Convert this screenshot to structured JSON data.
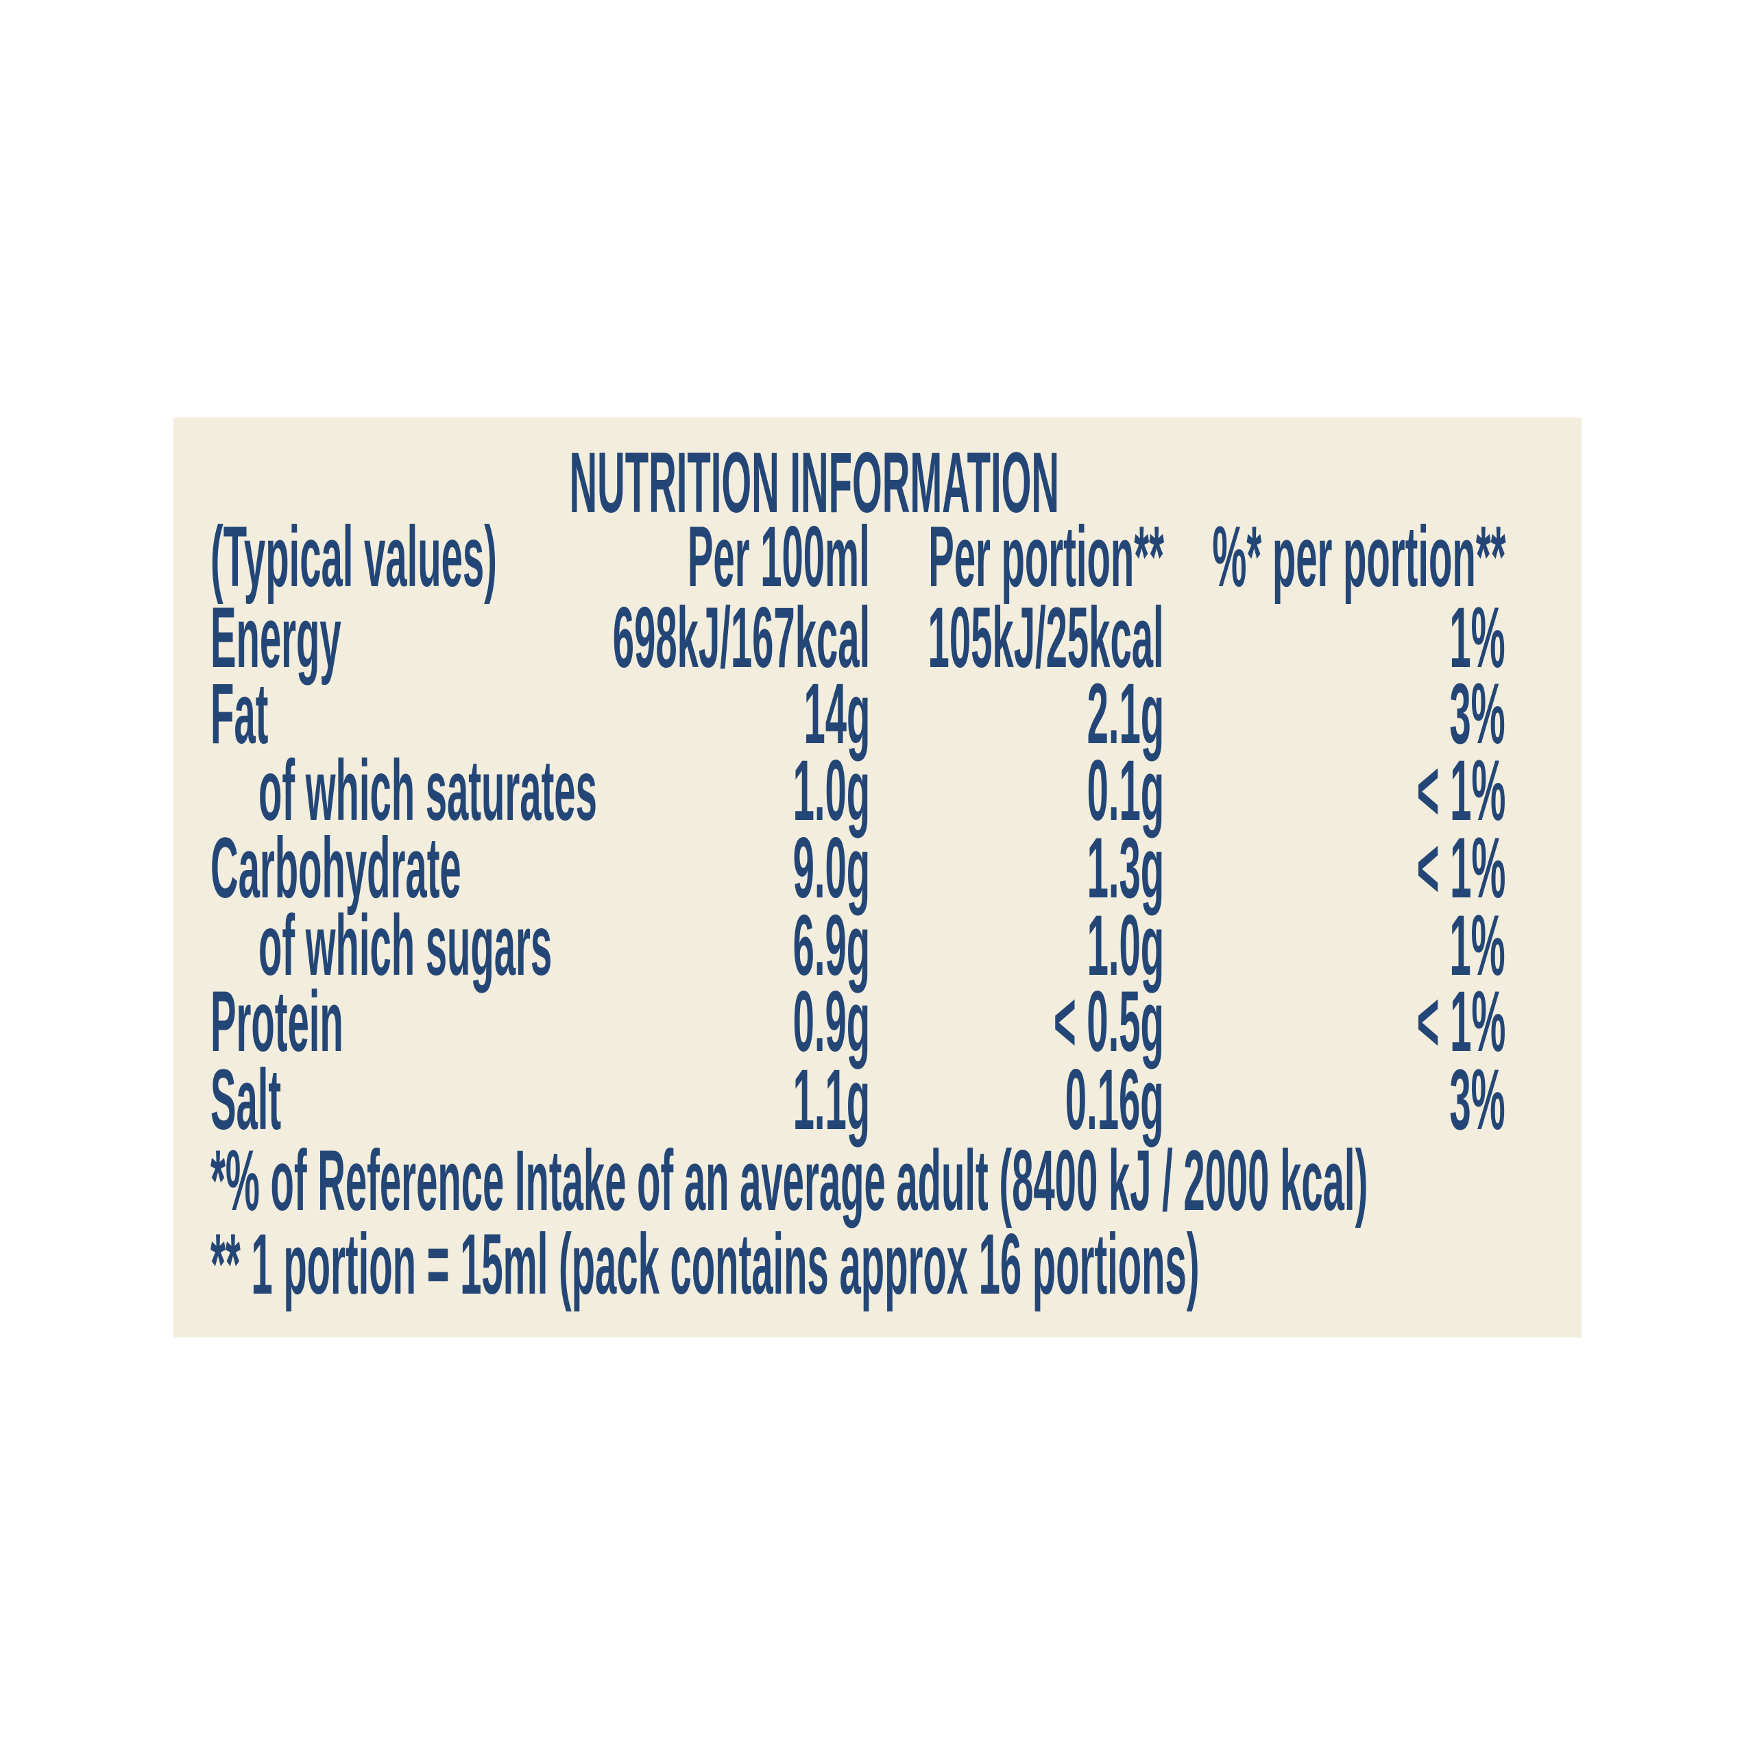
{
  "title": "NUTRITION INFORMATION",
  "headers": [
    "(Typical values)",
    "Per 100ml",
    "Per portion**",
    "%* per portion**"
  ],
  "rows": [
    {
      "label": "Energy",
      "indent": false,
      "per100": "698kJ/167kcal",
      "perPortion": "105kJ/25kcal",
      "pct": "1%"
    },
    {
      "label": "Fat",
      "indent": false,
      "per100": "14g",
      "perPortion": "2.1g",
      "pct": "3%"
    },
    {
      "label": "of which saturates",
      "indent": true,
      "per100": "1.0g",
      "perPortion": "0.1g",
      "pct": "< 1%"
    },
    {
      "label": "Carbohydrate",
      "indent": false,
      "per100": "9.0g",
      "perPortion": "1.3g",
      "pct": "< 1%"
    },
    {
      "label": "of which sugars",
      "indent": true,
      "per100": "6.9g",
      "perPortion": "1.0g",
      "pct": "1%"
    },
    {
      "label": "Protein",
      "indent": false,
      "per100": "0.9g",
      "perPortion": "< 0.5g",
      "pct": "< 1%"
    },
    {
      "label": "Salt",
      "indent": false,
      "per100": "1.1g",
      "perPortion": "0.16g",
      "pct": "3%"
    }
  ],
  "footnotes": [
    "*% of Reference Intake of an average adult (8400 kJ / 2000 kcal)",
    "** 1 portion = 15ml (pack contains approx 16 portions)"
  ],
  "colors": {
    "text": "#234677",
    "panel": "#f2eddc",
    "background": "#ffffff"
  }
}
